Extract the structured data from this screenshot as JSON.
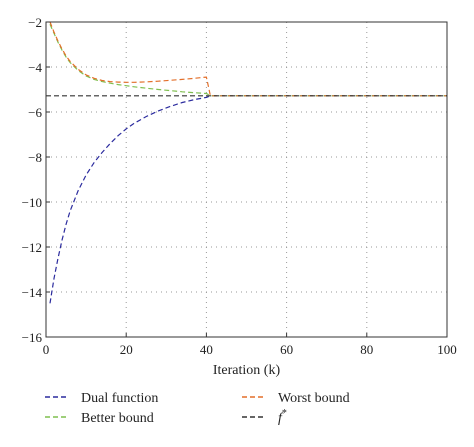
{
  "chart_data": {
    "type": "line",
    "xlabel": "Iteration (k)",
    "ylabel": "",
    "xlim": [
      0,
      100
    ],
    "ylim": [
      -16,
      -2
    ],
    "xticks": [
      0,
      20,
      40,
      60,
      80,
      100
    ],
    "yticks": [
      -2,
      -4,
      -6,
      -8,
      -10,
      -12,
      -14,
      -16
    ],
    "xtick_labels": [
      "0",
      "20",
      "40",
      "60",
      "80",
      "100"
    ],
    "ytick_labels": [
      "−2",
      "−4",
      "−6",
      "−8",
      "−10",
      "−12",
      "−14",
      "−16"
    ],
    "grid": true,
    "legend_position": "below",
    "series": [
      {
        "name": "Dual function",
        "color": "#2b2b9e",
        "style": "dashed",
        "x": [
          1,
          2,
          3,
          4,
          5,
          6,
          8,
          10,
          12,
          14,
          16,
          18,
          20,
          22,
          25,
          28,
          31,
          34,
          37,
          40,
          41,
          50,
          60,
          70,
          80,
          90,
          100
        ],
        "y": [
          -14.5,
          -13.4,
          -12.5,
          -11.7,
          -11.0,
          -10.4,
          -9.5,
          -8.8,
          -8.25,
          -7.8,
          -7.4,
          -7.05,
          -6.75,
          -6.5,
          -6.2,
          -5.95,
          -5.75,
          -5.58,
          -5.45,
          -5.35,
          -5.28,
          -5.28,
          -5.28,
          -5.28,
          -5.28,
          -5.28,
          -5.28
        ]
      },
      {
        "name": "Better bound",
        "color": "#7fbf4f",
        "style": "dashed",
        "x": [
          1,
          2,
          3,
          4,
          5,
          6,
          8,
          10,
          12,
          14,
          16,
          18,
          20,
          22,
          25,
          28,
          31,
          34,
          37,
          40,
          41,
          50,
          60,
          70,
          80,
          90,
          100
        ],
        "y": [
          -2.1,
          -2.5,
          -2.9,
          -3.25,
          -3.55,
          -3.8,
          -4.15,
          -4.4,
          -4.55,
          -4.65,
          -4.72,
          -4.78,
          -4.83,
          -4.88,
          -4.94,
          -5.0,
          -5.05,
          -5.1,
          -5.14,
          -5.18,
          -5.28,
          -5.28,
          -5.28,
          -5.28,
          -5.28,
          -5.28,
          -5.28
        ]
      },
      {
        "name": "Worst bound",
        "color": "#e36f2a",
        "style": "dashed",
        "x": [
          1,
          2,
          3,
          4,
          5,
          6,
          8,
          10,
          12,
          14,
          16,
          18,
          20,
          22,
          25,
          28,
          31,
          34,
          37,
          40,
          41,
          50,
          60,
          70,
          80,
          90,
          100
        ],
        "y": [
          -2.0,
          -2.45,
          -2.85,
          -3.2,
          -3.5,
          -3.75,
          -4.1,
          -4.35,
          -4.5,
          -4.6,
          -4.65,
          -4.67,
          -4.68,
          -4.68,
          -4.66,
          -4.63,
          -4.59,
          -4.55,
          -4.5,
          -4.45,
          -5.28,
          -5.28,
          -5.28,
          -5.28,
          -5.28,
          -5.28,
          -5.28
        ]
      },
      {
        "name": "f*",
        "color": "#333333",
        "style": "dashed",
        "x": [
          0,
          100
        ],
        "y": [
          -5.28,
          -5.28
        ]
      }
    ]
  }
}
